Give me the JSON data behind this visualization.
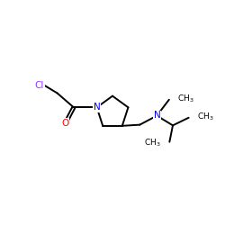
{
  "bg_color": "#ffffff",
  "atom_colors": {
    "Cl": "#9b30ff",
    "O": "#ff0000",
    "N": "#0000ff",
    "C": "#000000"
  },
  "font_size_atoms": 7.5,
  "font_size_methyl": 6.5,
  "line_width": 1.4,
  "line_color": "#000000",
  "figsize": [
    2.5,
    2.5
  ],
  "dpi": 100,
  "xlim": [
    0,
    10
  ],
  "ylim": [
    0,
    10
  ]
}
